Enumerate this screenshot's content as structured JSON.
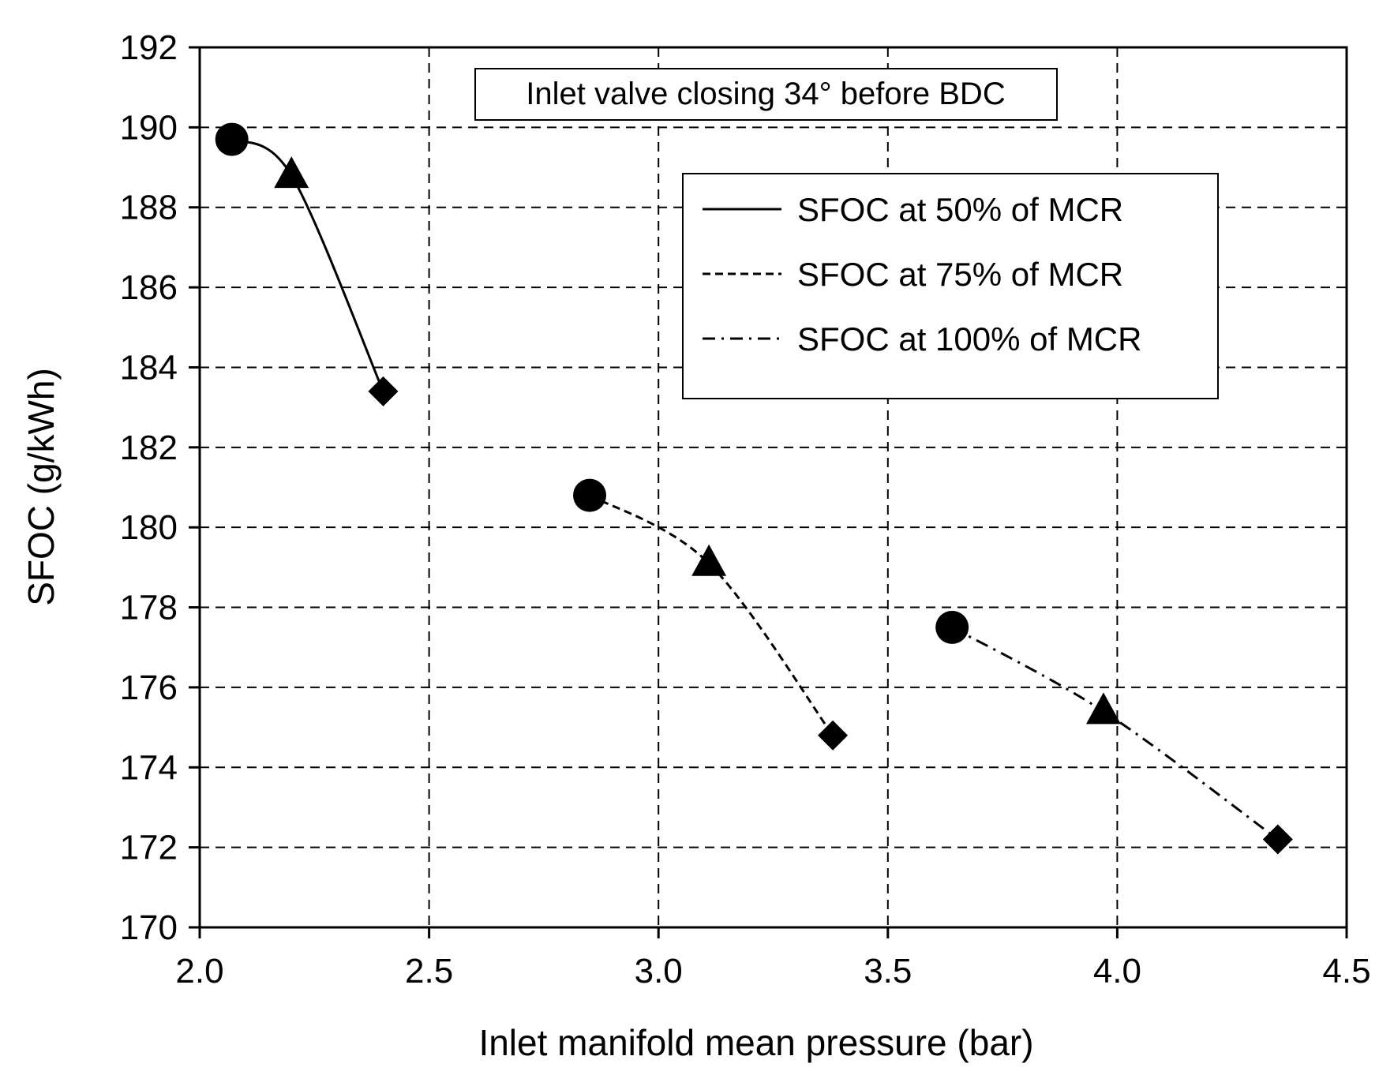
{
  "chart_data": {
    "type": "line",
    "title": "",
    "xlabel": "Inlet manifold mean pressure (bar)",
    "ylabel": "SFOC (g/kWh)",
    "xlim": [
      2.0,
      4.5
    ],
    "ylim": [
      170,
      192
    ],
    "xticks": [
      2.0,
      2.5,
      3.0,
      3.5,
      4.0,
      4.5
    ],
    "xtick_labels": [
      "2.0",
      "2.5",
      "3.0",
      "3.5",
      "4.0",
      "4.5"
    ],
    "yticks": [
      170,
      172,
      174,
      176,
      178,
      180,
      182,
      184,
      186,
      188,
      190,
      192
    ],
    "ytick_labels": [
      "170",
      "172",
      "174",
      "176",
      "178",
      "180",
      "182",
      "184",
      "186",
      "188",
      "190",
      "192"
    ],
    "grid": true,
    "annotation": "Inlet valve  closing 34° before BDC",
    "legend_position": "top-right",
    "marker_order": [
      "circle",
      "triangle",
      "diamond"
    ],
    "series": [
      {
        "name": "SFOC at 50% of MCR",
        "line_style": "solid",
        "x": [
          2.07,
          2.2,
          2.4
        ],
        "y": [
          189.7,
          188.8,
          183.4
        ]
      },
      {
        "name": "SFOC at 75% of MCR",
        "line_style": "dashed",
        "x": [
          2.85,
          3.11,
          3.38
        ],
        "y": [
          180.8,
          179.1,
          174.8
        ]
      },
      {
        "name": "SFOC at 100% of MCR",
        "line_style": "dashdot",
        "x": [
          3.64,
          3.97,
          4.35
        ],
        "y": [
          177.5,
          175.4,
          172.2
        ]
      }
    ]
  }
}
